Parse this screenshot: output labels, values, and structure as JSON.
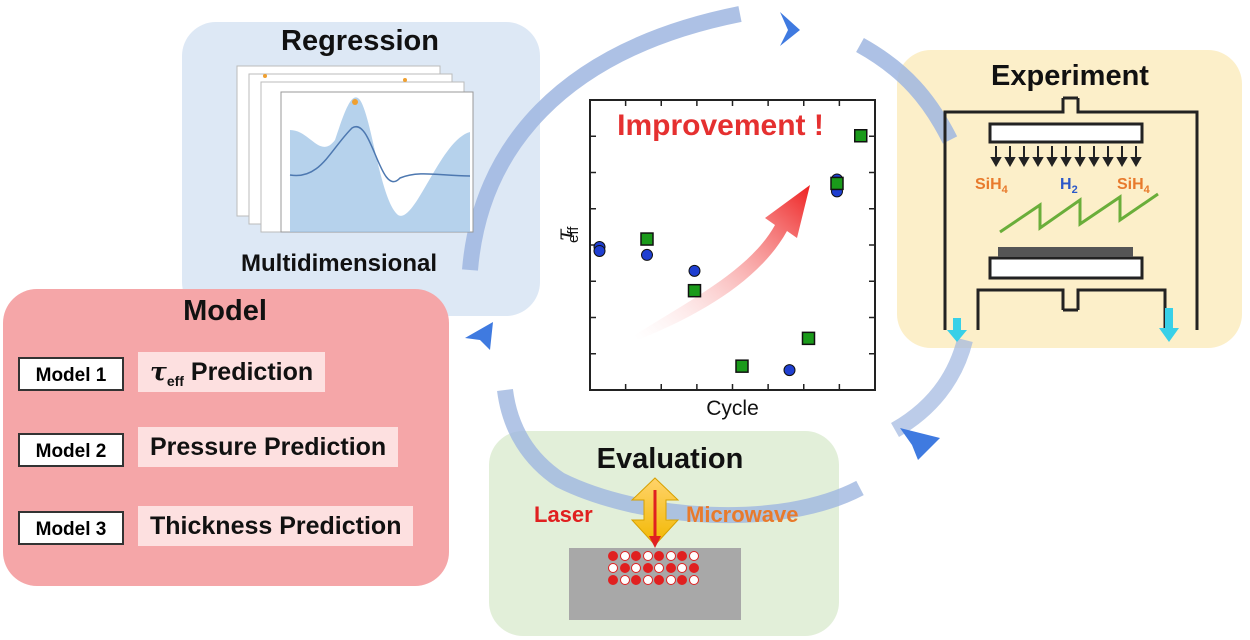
{
  "regression": {
    "title": "Regression",
    "caption": "Multidimensional"
  },
  "experiment": {
    "title": "Experiment",
    "gas_left": "SiH",
    "gas_left_sub": "4",
    "gas_mid": "H",
    "gas_mid_sub": "2",
    "gas_right": "SiH",
    "gas_right_sub": "4"
  },
  "model": {
    "title": "Model",
    "rows": [
      {
        "id": "Model 1",
        "symbol": "τ",
        "symbol_sub": "eff",
        "prediction": "Prediction"
      },
      {
        "id": "Model 2",
        "prediction": "Pressure Prediction"
      },
      {
        "id": "Model 3",
        "prediction": "Thickness Prediction"
      }
    ]
  },
  "evaluation": {
    "title": "Evaluation",
    "left": "Laser",
    "right": "Microwave"
  },
  "chart_data": {
    "type": "scatter",
    "title": "Improvement !",
    "xlabel": "Cycle",
    "ylabel": "τ",
    "ylabel_sub": "eff",
    "series": [
      {
        "marker": "circle",
        "color": "#1f3fd1",
        "points": [
          [
            1,
            5.1
          ],
          [
            1,
            5.0
          ],
          [
            2,
            4.9
          ],
          [
            3,
            4.5
          ],
          [
            5,
            2.0
          ],
          [
            6,
            6.8
          ],
          [
            6,
            6.5
          ]
        ]
      },
      {
        "marker": "square",
        "color": "#1a9a1a",
        "points": [
          [
            2,
            5.3
          ],
          [
            3,
            4.0
          ],
          [
            4,
            2.1
          ],
          [
            5.4,
            2.8
          ],
          [
            6,
            6.7
          ],
          [
            6.5,
            7.9
          ]
        ]
      }
    ],
    "xlim": [
      0.8,
      6.8
    ],
    "ylim": [
      1.5,
      8.8
    ]
  },
  "colors": {
    "regression_bg": "#dde8f5",
    "experiment_bg": "#fcefc9",
    "model_bg": "#f5a6a8",
    "evaluation_bg": "#e2efd9",
    "cycle_arrow": "#9fb6e0",
    "chevron": "#3f7ae0",
    "improve_text": "#e53030"
  }
}
